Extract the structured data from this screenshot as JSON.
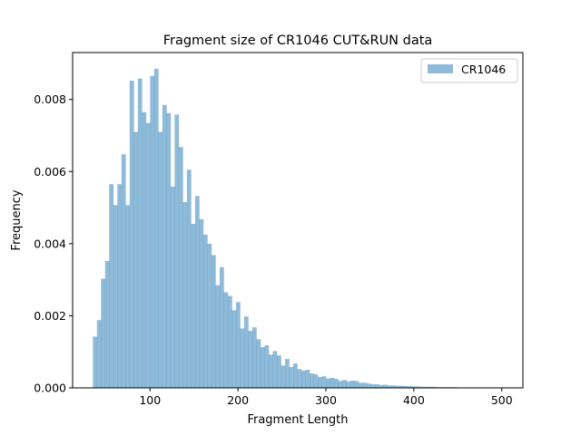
{
  "chart_data": {
    "type": "bar",
    "title": "Fragment size of CR1046 CUT&RUN data",
    "xlabel": "Fragment Length",
    "ylabel": "Frequency",
    "xlim": [
      12,
      524
    ],
    "ylim": [
      0,
      0.0093
    ],
    "xticks": [
      100,
      200,
      300,
      400,
      500
    ],
    "xtick_labels": [
      "100",
      "200",
      "300",
      "400",
      "500"
    ],
    "yticks": [
      0,
      0.002,
      0.004,
      0.006,
      0.008
    ],
    "ytick_labels": [
      "0.000",
      "0.002",
      "0.004",
      "0.006",
      "0.008"
    ],
    "grid": false,
    "legend_position": "top-right",
    "bin_start": 35,
    "bin_width": 4.65,
    "series": [
      {
        "name": "CR1046",
        "color": "#1f77b4",
        "alpha": 0.5,
        "values": [
          0.00142,
          0.00188,
          0.00303,
          0.00352,
          0.00565,
          0.00507,
          0.00565,
          0.00648,
          0.00507,
          0.00852,
          0.0071,
          0.00858,
          0.00765,
          0.00735,
          0.00865,
          0.00885,
          0.0071,
          0.00785,
          0.00762,
          0.00558,
          0.00758,
          0.00668,
          0.00515,
          0.00605,
          0.00455,
          0.00532,
          0.00468,
          0.00425,
          0.004,
          0.00368,
          0.00285,
          0.00335,
          0.00265,
          0.00255,
          0.00215,
          0.00238,
          0.00165,
          0.00198,
          0.00158,
          0.00168,
          0.00135,
          0.00113,
          0.00118,
          0.00092,
          0.00102,
          0.0009,
          0.00062,
          0.0008,
          0.00058,
          0.00068,
          0.00052,
          0.00048,
          0.0005,
          0.0004,
          0.00038,
          0.0003,
          0.00032,
          0.00026,
          0.00028,
          0.00025,
          0.00019,
          0.00022,
          0.00018,
          0.0002,
          0.00019,
          0.00014,
          0.00014,
          0.00012,
          0.0001,
          0.0001,
          8e-05,
          9e-05,
          7e-05,
          7e-05,
          6e-05,
          6e-05,
          5e-05,
          5e-05,
          4e-05,
          4e-05,
          3e-05,
          3e-05,
          3e-05,
          3e-05,
          2e-05,
          2e-05,
          2e-05,
          2e-05,
          2e-05,
          1e-05,
          1e-05,
          1e-05,
          1e-05,
          1e-05,
          1e-05,
          1e-05,
          1e-05,
          1e-05,
          1e-05,
          1e-05
        ]
      }
    ]
  }
}
